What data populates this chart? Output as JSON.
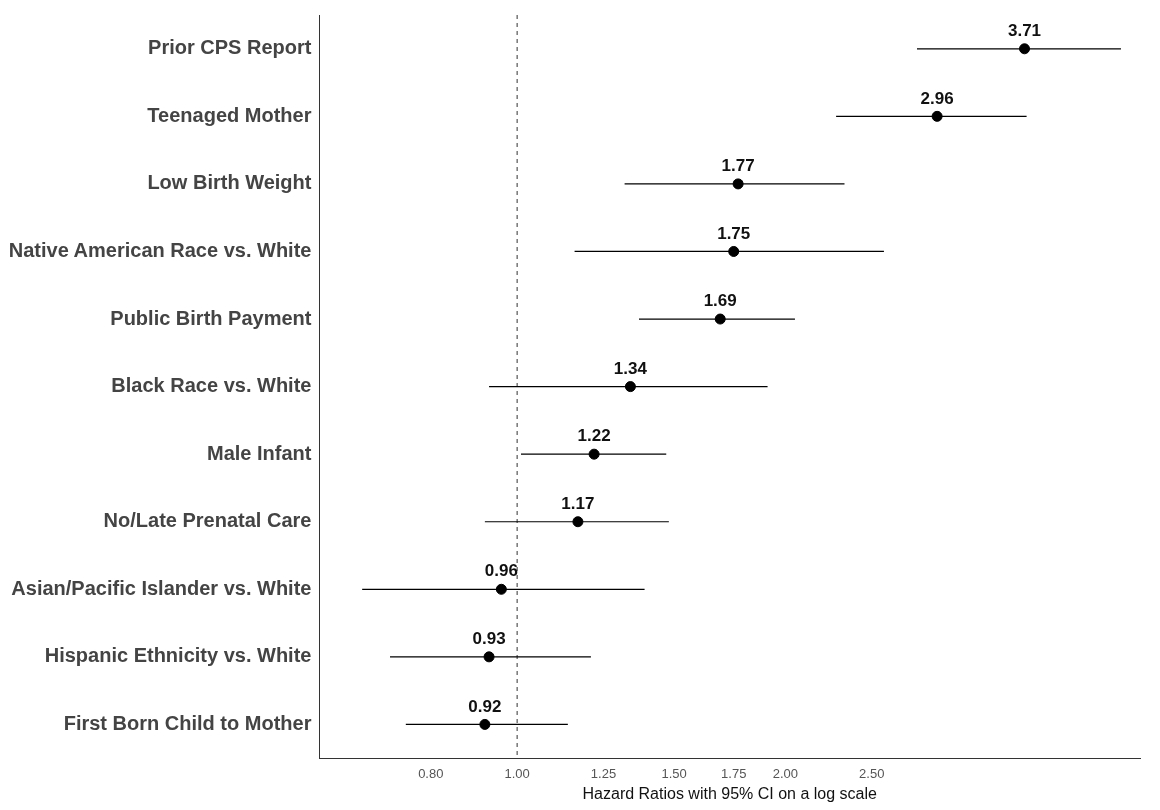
{
  "chart_data": {
    "type": "scatter",
    "orientation": "horizontal",
    "xlabel": "Hazard Ratios with 95% CI on a log scale",
    "categories": [
      "Prior CPS Report",
      "Teenaged Mother",
      "Low Birth Weight",
      "Native American Race vs. White",
      "Public Birth Payment",
      "Black Race vs. White",
      "Male Infant",
      "No/Late Prenatal Care",
      "Asian/Pacific Islander vs. White",
      "Hispanic Ethnicity vs. White",
      "First Born Child to Mother"
    ],
    "values": [
      3.71,
      2.96,
      1.77,
      1.75,
      1.69,
      1.34,
      1.22,
      1.17,
      0.96,
      0.93,
      0.92
    ],
    "errors": [
      [
        2.81,
        4.76
      ],
      [
        2.28,
        3.73
      ],
      [
        1.32,
        2.33
      ],
      [
        1.16,
        2.58
      ],
      [
        1.37,
        2.05
      ],
      [
        0.93,
        1.91
      ],
      [
        1.01,
        1.47
      ],
      [
        0.92,
        1.48
      ],
      [
        0.67,
        1.39
      ],
      [
        0.72,
        1.21
      ],
      [
        0.75,
        1.14
      ]
    ],
    "color": "#000000",
    "marker": "circle",
    "data_labels": true,
    "log": "x",
    "grid": false,
    "legend": false,
    "xlim": [
      0.6,
      5
    ],
    "xticks": [
      {
        "value": 0.8,
        "label": "0.80"
      },
      {
        "value": 1,
        "label": "1.00"
      },
      {
        "value": 1.25,
        "label": "1.25"
      },
      {
        "value": 1.5,
        "label": "1.50"
      },
      {
        "value": 1.75,
        "label": "1.75"
      },
      {
        "value": 2,
        "label": "2.00"
      },
      {
        "value": 2.5,
        "label": "2.50"
      }
    ],
    "ref_lines": [
      {
        "axis": "x",
        "value": 1,
        "color": "#555555",
        "line_style": "dashed"
      }
    ]
  }
}
